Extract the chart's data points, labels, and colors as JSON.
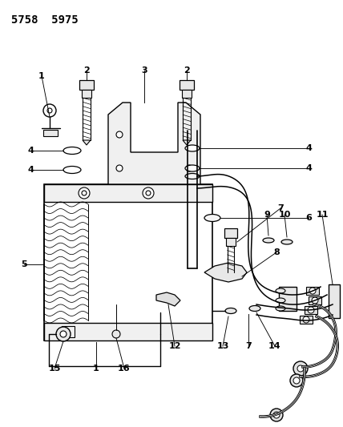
{
  "title": "5758  5975",
  "bg_color": "#ffffff",
  "line_color": "#000000",
  "label_color": "#000000",
  "title_fontsize": 10,
  "label_fontsize": 8,
  "fig_w": 4.28,
  "fig_h": 5.33,
  "dpi": 100
}
